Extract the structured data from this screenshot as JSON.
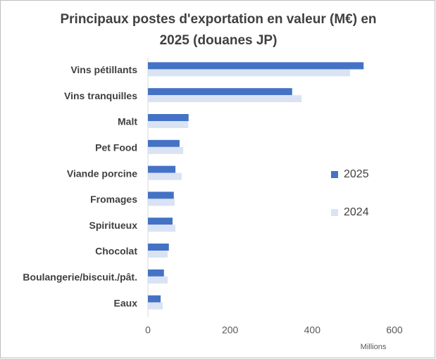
{
  "chart_data": {
    "type": "barh",
    "title": [
      "Principaux postes d'exportation en valeur (M€) en",
      "2025 (douanes JP)"
    ],
    "categories": [
      "Vins pétillants",
      "Vins tranquilles",
      "Malt",
      "Pet Food",
      "Viande porcine",
      "Fromages",
      "Spiritueux",
      "Chocolat",
      "Boulangerie/biscuit./pât.",
      "Eaux"
    ],
    "series": [
      {
        "name": "2025",
        "color": "#4472c4",
        "values": [
          525,
          351,
          99,
          77,
          67,
          63,
          60,
          51,
          39,
          31
        ]
      },
      {
        "name": "2024",
        "color": "#dae3f3",
        "values": [
          492,
          374,
          98,
          86,
          82,
          65,
          67,
          48,
          48,
          36
        ]
      }
    ],
    "xlim": [
      0,
      600
    ],
    "xticks": [
      0,
      200,
      400,
      600
    ],
    "x_unit_label": "Millions",
    "grid": false,
    "legend": "right"
  }
}
